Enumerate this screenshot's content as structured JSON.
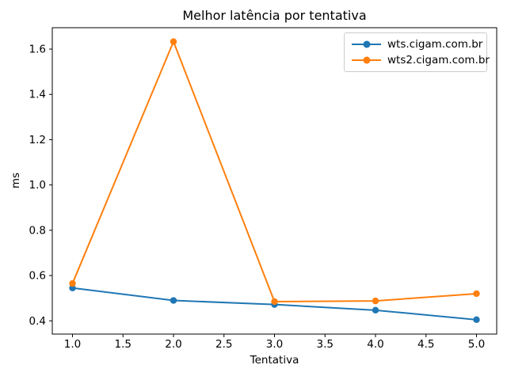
{
  "chart_data": {
    "type": "line",
    "title": "Melhor latência por tentativa",
    "xlabel": "Tentativa",
    "ylabel": "ms",
    "x": [
      1,
      2,
      3,
      4,
      5
    ],
    "series": [
      {
        "name": "wts.cigam.com.br",
        "color": "#1f77b4",
        "values": [
          0.545,
          0.49,
          0.472,
          0.447,
          0.405
        ]
      },
      {
        "name": "wts2.cigam.com.br",
        "color": "#ff7f0e",
        "values": [
          0.565,
          1.633,
          0.485,
          0.488,
          0.52
        ]
      }
    ],
    "xticks": {
      "values": [
        1.0,
        1.5,
        2.0,
        2.5,
        3.0,
        3.5,
        4.0,
        4.5,
        5.0
      ],
      "labels": [
        "1.0",
        "1.5",
        "2.0",
        "2.5",
        "3.0",
        "3.5",
        "4.0",
        "4.5",
        "5.0"
      ]
    },
    "yticks": {
      "values": [
        0.4,
        0.6,
        0.8,
        1.0,
        1.2,
        1.4,
        1.6
      ],
      "labels": [
        "0.4",
        "0.6",
        "0.8",
        "1.0",
        "1.2",
        "1.4",
        "1.6"
      ]
    },
    "xlim": [
      0.8,
      5.2
    ],
    "ylim": [
      0.3415,
      1.6945
    ],
    "grid": false,
    "legend_position": "upper right",
    "background": "#ffffff",
    "axis_color": "#000000"
  }
}
